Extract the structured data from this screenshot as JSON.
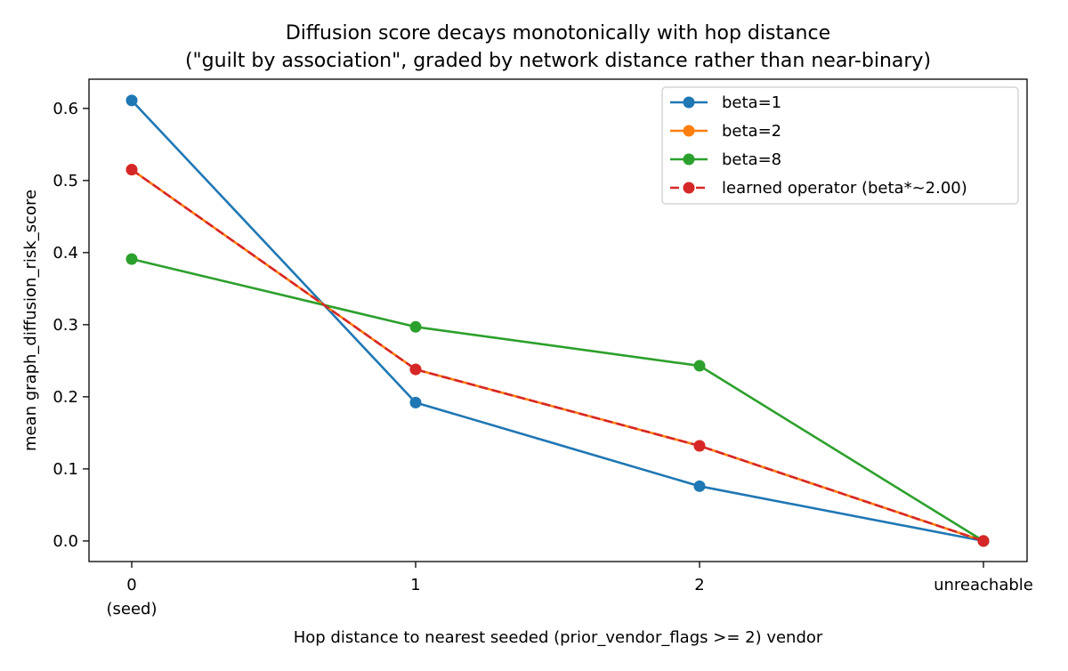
{
  "chart_data": {
    "type": "line",
    "title": "Diffusion score decays monotonically with hop distance",
    "subtitle": "(\"guilt by association\", graded by network distance rather than near-binary)",
    "xlabel": "Hop distance to nearest seeded (prior_vendor_flags >= 2) vendor",
    "ylabel": "mean graph_diffusion_risk_score",
    "categories": [
      "0\n(seed)",
      "1",
      "2",
      "unreachable"
    ],
    "ylim": [
      -0.0285,
      0.6405
    ],
    "yticks": [
      "0.0",
      "0.1",
      "0.2",
      "0.3",
      "0.4",
      "0.5",
      "0.6"
    ],
    "grid": false,
    "legend_position": "top-right",
    "series": [
      {
        "name": "beta=1",
        "color": "#1f77b4",
        "linestyle": "solid",
        "values": [
          0.611,
          0.192,
          0.076,
          0.0
        ]
      },
      {
        "name": "beta=2",
        "color": "#ff7f0e",
        "linestyle": "solid",
        "values": [
          0.515,
          0.238,
          0.132,
          0.0
        ]
      },
      {
        "name": "beta=8",
        "color": "#2ca02c",
        "linestyle": "solid",
        "values": [
          0.391,
          0.297,
          0.243,
          0.0
        ]
      },
      {
        "name": "learned operator (beta*~2.00)",
        "color": "#d62728",
        "linestyle": "dashed",
        "values": [
          0.515,
          0.238,
          0.132,
          0.0
        ]
      }
    ]
  }
}
